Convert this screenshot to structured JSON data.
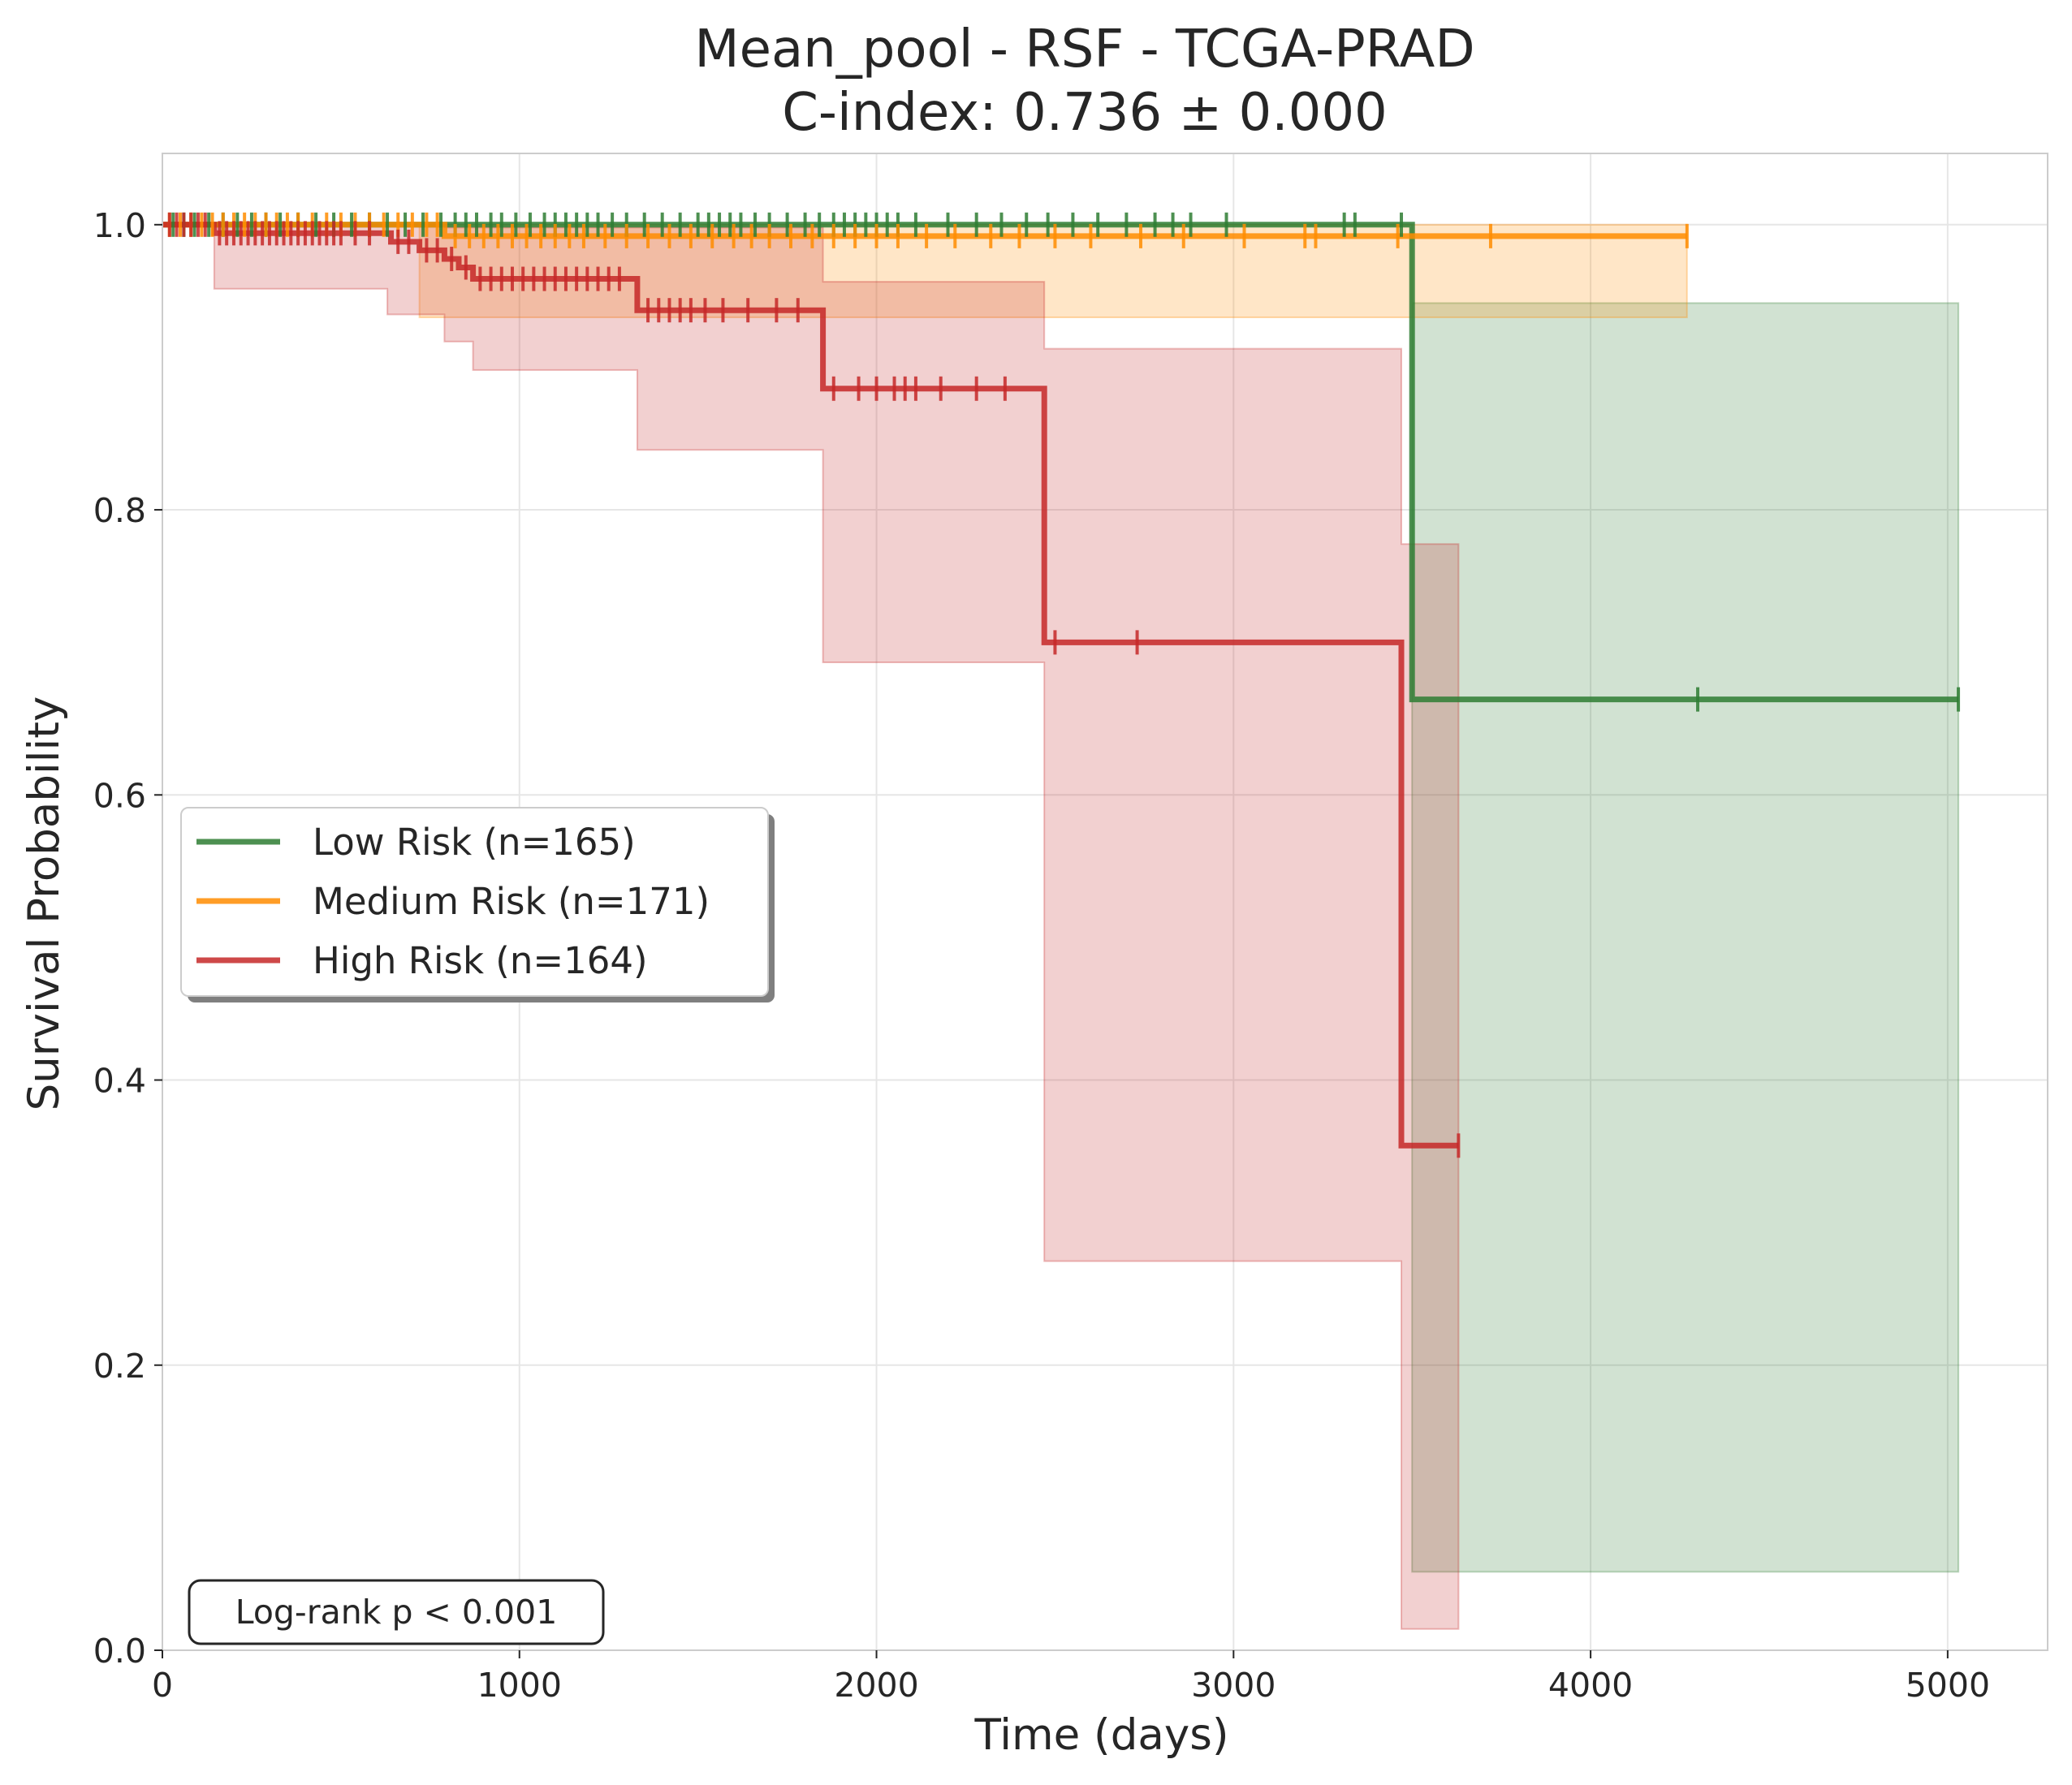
{
  "chart_data": {
    "type": "line",
    "subtype": "kaplan-meier",
    "title": "Mean_pool - RSF - TCGA-PRAD",
    "subtitle": "C-index: 0.736 ± 0.000",
    "xlabel": "Time (days)",
    "ylabel": "Survival Probability",
    "xlim": [
      0,
      5280
    ],
    "ylim": [
      0,
      1.05
    ],
    "xticks": [
      0,
      1000,
      2000,
      3000,
      4000,
      5000
    ],
    "xtick_labels": [
      "0",
      "1000",
      "2000",
      "3000",
      "4000",
      "5000"
    ],
    "yticks": [
      0,
      0.2,
      0.4,
      0.6,
      0.8,
      1.0
    ],
    "ytick_labels": [
      "0.0",
      "0.2",
      "0.4",
      "0.6",
      "0.8",
      "1.0"
    ],
    "grid": true,
    "legend_position": "center-left",
    "annotation": "Log-rank p < 0.001",
    "series": [
      {
        "name": "Low Risk (n=165)",
        "color": "#2e7d32",
        "steps": [
          [
            0,
            1.0
          ],
          [
            3500,
            0.667
          ],
          [
            5030,
            0.667
          ]
        ],
        "ci": [
          [
            0,
            1.0,
            1.0
          ],
          [
            3500,
            0.055,
            0.945
          ],
          [
            5030,
            0.055,
            0.945
          ]
        ],
        "censored": [
          [
            30,
            1.0
          ],
          [
            60,
            1.0
          ],
          [
            90,
            1.0
          ],
          [
            130,
            1.0
          ],
          [
            170,
            1.0
          ],
          [
            210,
            1.0
          ],
          [
            250,
            1.0
          ],
          [
            290,
            1.0
          ],
          [
            330,
            1.0
          ],
          [
            380,
            1.0
          ],
          [
            430,
            1.0
          ],
          [
            480,
            1.0
          ],
          [
            530,
            1.0
          ],
          [
            580,
            1.0
          ],
          [
            630,
            1.0
          ],
          [
            680,
            1.0
          ],
          [
            730,
            1.0
          ],
          [
            780,
            1.0
          ],
          [
            820,
            1.0
          ],
          [
            850,
            1.0
          ],
          [
            880,
            1.0
          ],
          [
            920,
            1.0
          ],
          [
            950,
            1.0
          ],
          [
            990,
            1.0
          ],
          [
            1030,
            1.0
          ],
          [
            1070,
            1.0
          ],
          [
            1100,
            1.0
          ],
          [
            1130,
            1.0
          ],
          [
            1160,
            1.0
          ],
          [
            1190,
            1.0
          ],
          [
            1220,
            1.0
          ],
          [
            1260,
            1.0
          ],
          [
            1300,
            1.0
          ],
          [
            1350,
            1.0
          ],
          [
            1400,
            1.0
          ],
          [
            1450,
            1.0
          ],
          [
            1500,
            1.0
          ],
          [
            1530,
            1.0
          ],
          [
            1560,
            1.0
          ],
          [
            1590,
            1.0
          ],
          [
            1620,
            1.0
          ],
          [
            1660,
            1.0
          ],
          [
            1700,
            1.0
          ],
          [
            1750,
            1.0
          ],
          [
            1800,
            1.0
          ],
          [
            1840,
            1.0
          ],
          [
            1880,
            1.0
          ],
          [
            1910,
            1.0
          ],
          [
            1940,
            1.0
          ],
          [
            1970,
            1.0
          ],
          [
            2000,
            1.0
          ],
          [
            2030,
            1.0
          ],
          [
            2060,
            1.0
          ],
          [
            2110,
            1.0
          ],
          [
            2200,
            1.0
          ],
          [
            2280,
            1.0
          ],
          [
            2350,
            1.0
          ],
          [
            2420,
            1.0
          ],
          [
            2480,
            1.0
          ],
          [
            2550,
            1.0
          ],
          [
            2620,
            1.0
          ],
          [
            2700,
            1.0
          ],
          [
            2780,
            1.0
          ],
          [
            2830,
            1.0
          ],
          [
            2880,
            1.0
          ],
          [
            2980,
            1.0
          ],
          [
            3310,
            1.0
          ],
          [
            3340,
            1.0
          ],
          [
            3470,
            1.0
          ],
          [
            4300,
            0.667
          ],
          [
            5030,
            0.667
          ]
        ]
      },
      {
        "name": "Medium Risk (n=171)",
        "color": "#ff8c00",
        "steps": [
          [
            0,
            1.0
          ],
          [
            790,
            0.992
          ],
          [
            4270,
            0.992
          ]
        ],
        "ci": [
          [
            0,
            1.0,
            1.0
          ],
          [
            720,
            1.0,
            1.0
          ],
          [
            720,
            0.935,
            1.0
          ],
          [
            4270,
            0.935,
            1.0
          ]
        ],
        "censored": [
          [
            20,
            1.0
          ],
          [
            50,
            1.0
          ],
          [
            80,
            1.0
          ],
          [
            110,
            1.0
          ],
          [
            140,
            1.0
          ],
          [
            170,
            1.0
          ],
          [
            200,
            1.0
          ],
          [
            230,
            1.0
          ],
          [
            260,
            1.0
          ],
          [
            290,
            1.0
          ],
          [
            320,
            1.0
          ],
          [
            350,
            1.0
          ],
          [
            380,
            1.0
          ],
          [
            420,
            1.0
          ],
          [
            460,
            1.0
          ],
          [
            500,
            1.0
          ],
          [
            540,
            1.0
          ],
          [
            580,
            1.0
          ],
          [
            620,
            1.0
          ],
          [
            660,
            1.0
          ],
          [
            700,
            1.0
          ],
          [
            740,
            1.0
          ],
          [
            770,
            1.0
          ],
          [
            820,
            0.992
          ],
          [
            860,
            0.992
          ],
          [
            900,
            0.992
          ],
          [
            940,
            0.992
          ],
          [
            980,
            0.992
          ],
          [
            1020,
            0.992
          ],
          [
            1060,
            0.992
          ],
          [
            1100,
            0.992
          ],
          [
            1140,
            0.992
          ],
          [
            1180,
            0.992
          ],
          [
            1240,
            0.992
          ],
          [
            1300,
            0.992
          ],
          [
            1360,
            0.992
          ],
          [
            1420,
            0.992
          ],
          [
            1480,
            0.992
          ],
          [
            1540,
            0.992
          ],
          [
            1600,
            0.992
          ],
          [
            1650,
            0.992
          ],
          [
            1700,
            0.992
          ],
          [
            1760,
            0.992
          ],
          [
            1820,
            0.992
          ],
          [
            1880,
            0.992
          ],
          [
            1940,
            0.992
          ],
          [
            2000,
            0.992
          ],
          [
            2060,
            0.992
          ],
          [
            2140,
            0.992
          ],
          [
            2220,
            0.992
          ],
          [
            2320,
            0.992
          ],
          [
            2400,
            0.992
          ],
          [
            2500,
            0.992
          ],
          [
            2600,
            0.992
          ],
          [
            2740,
            0.992
          ],
          [
            2860,
            0.992
          ],
          [
            3030,
            0.992
          ],
          [
            3200,
            0.992
          ],
          [
            3230,
            0.992
          ],
          [
            3460,
            0.992
          ],
          [
            3720,
            0.992
          ],
          [
            4270,
            0.992
          ]
        ]
      },
      {
        "name": "High Risk (n=164)",
        "color": "#c62828",
        "steps": [
          [
            0,
            1.0
          ],
          [
            145,
            0.994
          ],
          [
            640,
            0.988
          ],
          [
            720,
            0.982
          ],
          [
            790,
            0.976
          ],
          [
            830,
            0.97
          ],
          [
            870,
            0.962
          ],
          [
            1330,
            0.94
          ],
          [
            1850,
            0.885
          ],
          [
            2470,
            0.707
          ],
          [
            3470,
            0.354
          ],
          [
            3630,
            0.354
          ]
        ],
        "ci": [
          [
            0,
            1.0,
            1.0
          ],
          [
            145,
            0.955,
            1.0
          ],
          [
            630,
            0.937,
            1.0
          ],
          [
            790,
            0.918,
            0.998
          ],
          [
            870,
            0.898,
            0.998
          ],
          [
            1330,
            0.842,
            0.998
          ],
          [
            1850,
            0.693,
            0.96
          ],
          [
            2470,
            0.273,
            0.913
          ],
          [
            3470,
            0.015,
            0.776
          ],
          [
            3630,
            0.015,
            0.776
          ]
        ],
        "censored": [
          [
            20,
            1.0
          ],
          [
            40,
            1.0
          ],
          [
            60,
            1.0
          ],
          [
            80,
            1.0
          ],
          [
            100,
            1.0
          ],
          [
            120,
            1.0
          ],
          [
            160,
            0.994
          ],
          [
            180,
            0.994
          ],
          [
            200,
            0.994
          ],
          [
            220,
            0.994
          ],
          [
            240,
            0.994
          ],
          [
            260,
            0.994
          ],
          [
            280,
            0.994
          ],
          [
            300,
            0.994
          ],
          [
            320,
            0.994
          ],
          [
            340,
            0.994
          ],
          [
            360,
            0.994
          ],
          [
            380,
            0.994
          ],
          [
            400,
            0.994
          ],
          [
            420,
            0.994
          ],
          [
            440,
            0.994
          ],
          [
            460,
            0.994
          ],
          [
            480,
            0.994
          ],
          [
            500,
            0.994
          ],
          [
            540,
            0.994
          ],
          [
            580,
            0.994
          ],
          [
            660,
            0.988
          ],
          [
            690,
            0.988
          ],
          [
            740,
            0.982
          ],
          [
            770,
            0.982
          ],
          [
            810,
            0.976
          ],
          [
            850,
            0.97
          ],
          [
            890,
            0.962
          ],
          [
            920,
            0.962
          ],
          [
            950,
            0.962
          ],
          [
            980,
            0.962
          ],
          [
            1010,
            0.962
          ],
          [
            1040,
            0.962
          ],
          [
            1070,
            0.962
          ],
          [
            1100,
            0.962
          ],
          [
            1130,
            0.962
          ],
          [
            1160,
            0.962
          ],
          [
            1190,
            0.962
          ],
          [
            1220,
            0.962
          ],
          [
            1250,
            0.962
          ],
          [
            1280,
            0.962
          ],
          [
            1360,
            0.94
          ],
          [
            1390,
            0.94
          ],
          [
            1420,
            0.94
          ],
          [
            1450,
            0.94
          ],
          [
            1480,
            0.94
          ],
          [
            1520,
            0.94
          ],
          [
            1570,
            0.94
          ],
          [
            1640,
            0.94
          ],
          [
            1720,
            0.94
          ],
          [
            1780,
            0.94
          ],
          [
            1880,
            0.885
          ],
          [
            1950,
            0.885
          ],
          [
            2000,
            0.885
          ],
          [
            2050,
            0.885
          ],
          [
            2080,
            0.885
          ],
          [
            2110,
            0.885
          ],
          [
            2180,
            0.885
          ],
          [
            2280,
            0.885
          ],
          [
            2360,
            0.885
          ],
          [
            2500,
            0.707
          ],
          [
            2730,
            0.707
          ],
          [
            3630,
            0.354
          ]
        ]
      }
    ]
  }
}
